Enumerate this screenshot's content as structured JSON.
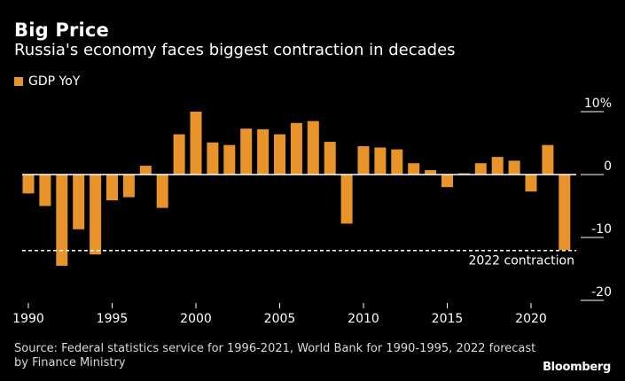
{
  "header": {
    "title": "Big Price",
    "subtitle": "Russia's economy faces biggest contraction in decades"
  },
  "legend": {
    "label": "GDP YoY"
  },
  "colors": {
    "bar": "#e8942a",
    "background": "#000000",
    "axis": "#ffffff"
  },
  "chart_data": {
    "type": "bar",
    "title": "Big Price",
    "subtitle": "Russia's economy faces biggest contraction in decades",
    "categories": [
      1990,
      1991,
      1992,
      1993,
      1994,
      1995,
      1996,
      1997,
      1998,
      1999,
      2000,
      2001,
      2002,
      2003,
      2004,
      2005,
      2006,
      2007,
      2008,
      2009,
      2010,
      2011,
      2012,
      2013,
      2014,
      2015,
      2016,
      2017,
      2018,
      2019,
      2020,
      2021,
      2022
    ],
    "series": [
      {
        "name": "GDP YoY",
        "values": [
          -3.0,
          -5.0,
          -14.5,
          -8.7,
          -12.7,
          -4.1,
          -3.6,
          1.4,
          -5.3,
          6.4,
          10.0,
          5.1,
          4.7,
          7.3,
          7.2,
          6.4,
          8.2,
          8.5,
          5.2,
          -7.8,
          4.5,
          4.3,
          4.0,
          1.8,
          0.7,
          -2.0,
          0.2,
          1.8,
          2.8,
          2.2,
          -2.7,
          4.7,
          -12.0
        ]
      }
    ],
    "xlabel": "",
    "ylabel": "",
    "ylim": [
      -20,
      10
    ],
    "yticks": [
      {
        "value": 10,
        "label": "10%"
      },
      {
        "value": 0,
        "label": "0"
      },
      {
        "value": -10,
        "label": "-10"
      },
      {
        "value": -20,
        "label": "-20"
      }
    ],
    "xticks": [
      "1990",
      "1995",
      "2000",
      "2005",
      "2010",
      "2015",
      "2020"
    ],
    "reference_line": {
      "value": -12,
      "label": "2022 contraction",
      "style": "dashed"
    },
    "grid": false,
    "legend_position": "top-left"
  },
  "footer": {
    "source": "Source: Federal statistics service for 1996-2021, World Bank for 1990-1995, 2022 forecast by Finance Ministry",
    "brand": "Bloomberg"
  }
}
